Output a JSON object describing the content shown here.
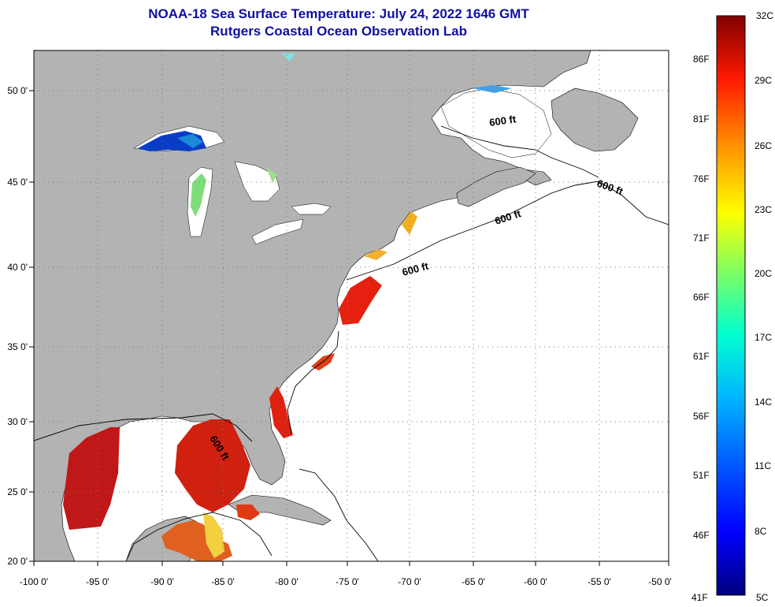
{
  "title": {
    "line1": "NOAA-18 Sea Surface Temperature:  July 24, 2022 1646 GMT",
    "line2": "Rutgers Coastal Ocean Observation Lab"
  },
  "map": {
    "longitude_ticks": [
      "-100 0'",
      "-95 0'",
      "-90 0'",
      "-85 0'",
      "-80 0'",
      "-75 0'",
      "-70 0'",
      "-65 0'",
      "-60 0'",
      "-55 0'",
      "-50 0'"
    ],
    "latitude_ticks": [
      "50 0'",
      "45 0'",
      "40 0'",
      "35 0'",
      "30 0'",
      "25 0'",
      "20 0'"
    ],
    "isobath_label": "600 ft",
    "colors": {
      "land": "#b3b3b3",
      "ocean_no_data": "#ffffff",
      "warm_sst": "#e02010",
      "cold_lake": "#0a3cc8"
    }
  },
  "colorbar": {
    "fahrenheit_labels": [
      "86F",
      "81F",
      "76F",
      "71F",
      "66F",
      "61F",
      "56F",
      "51F",
      "46F",
      "41F"
    ],
    "celsius_labels": [
      "32C",
      "29C",
      "26C",
      "23C",
      "20C",
      "17C",
      "14C",
      "11C",
      "8C",
      "5C"
    ],
    "range_c": [
      5,
      32
    ],
    "colors": [
      "#00007f",
      "#0000ff",
      "#007fff",
      "#00ffff",
      "#7fff7f",
      "#ffff00",
      "#ff7f00",
      "#ff0000",
      "#7f0000"
    ]
  }
}
